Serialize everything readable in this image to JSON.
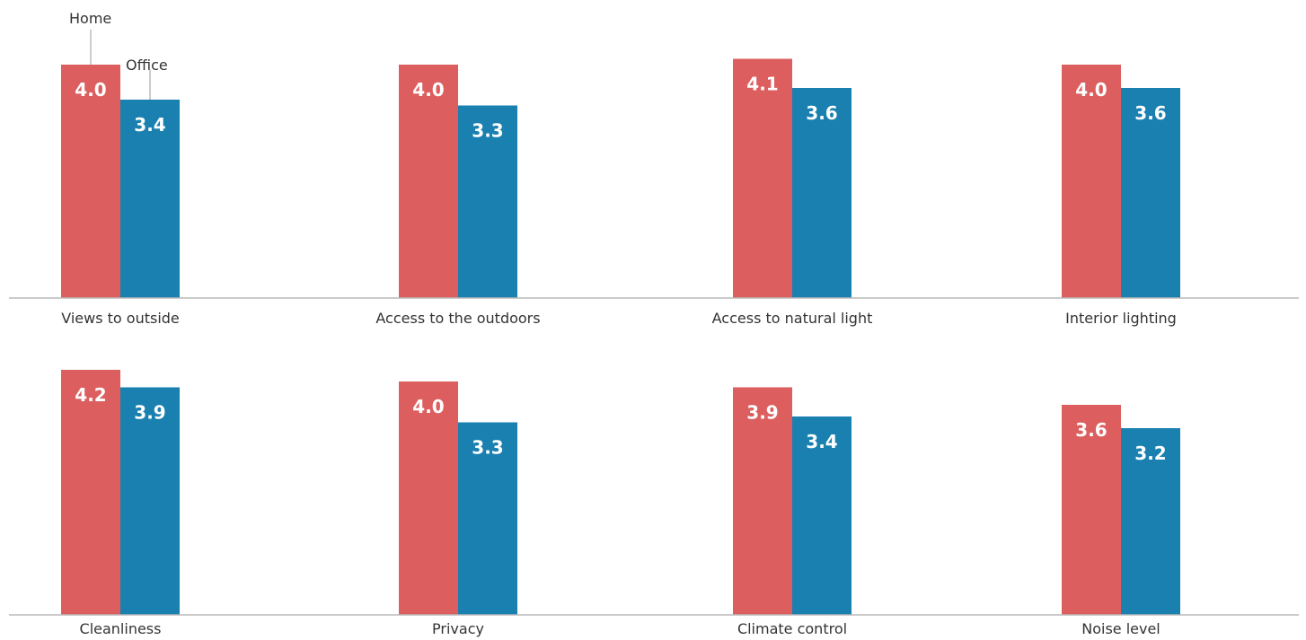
{
  "chart_data": {
    "type": "bar",
    "title": "",
    "xlabel": "",
    "ylabel": "",
    "ylim": [
      0,
      5
    ],
    "grid": false,
    "legend_placement": "inline on first group",
    "series": [
      {
        "name": "Home",
        "color": "#dc5e5e",
        "values": [
          4.0,
          4.0,
          4.1,
          4.0,
          4.2,
          4.0,
          3.9,
          3.6
        ]
      },
      {
        "name": "Office",
        "color": "#1a80b0",
        "values": [
          3.4,
          3.3,
          3.6,
          3.6,
          3.9,
          3.3,
          3.4,
          3.2
        ]
      }
    ],
    "categories": [
      "Views to outside",
      "Access to the outdoors",
      "Access to natural light",
      "Interior lighting",
      "Cleanliness",
      "Privacy",
      "Climate control",
      "Noise level"
    ],
    "panels": [
      {
        "row": 1,
        "category_indices": [
          0,
          1,
          2,
          3
        ]
      },
      {
        "row": 2,
        "category_indices": [
          4,
          5,
          6,
          7
        ]
      }
    ]
  }
}
